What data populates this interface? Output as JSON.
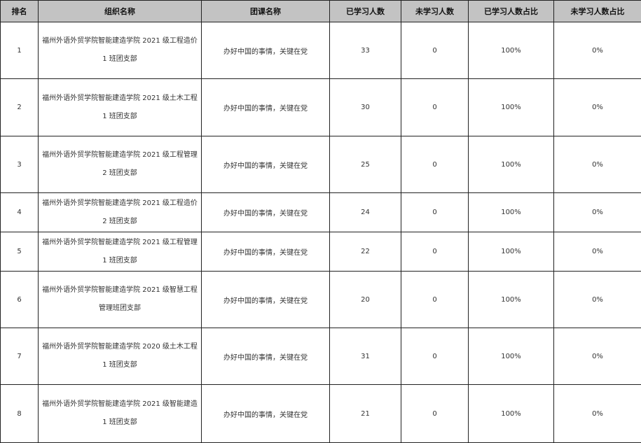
{
  "table": {
    "headers": [
      "排名",
      "组织名称",
      "团课名称",
      "已学习人数",
      "未学习人数",
      "已学习人数占比",
      "未学习人数占比"
    ],
    "rows": [
      {
        "rank": "1",
        "org": "福州外语外贸学院智能建造学院 2021 级工程造价 1 班团支部",
        "course": "办好中国的事情，关键在党",
        "learned": "33",
        "not_learned": "0",
        "learned_pct": "100%",
        "not_learned_pct": "0%"
      },
      {
        "rank": "2",
        "org": "福州外语外贸学院智能建造学院 2021 级土木工程 1 班团支部",
        "course": "办好中国的事情，关键在党",
        "learned": "30",
        "not_learned": "0",
        "learned_pct": "100%",
        "not_learned_pct": "0%"
      },
      {
        "rank": "3",
        "org": "福州外语外贸学院智能建造学院 2021 级工程管理 2 班团支部",
        "course": "办好中国的事情，关键在党",
        "learned": "25",
        "not_learned": "0",
        "learned_pct": "100%",
        "not_learned_pct": "0%"
      },
      {
        "rank": "4",
        "org": "福州外语外贸学院智能建造学院 2021 级工程造价 2 班团支部",
        "course": "办好中国的事情，关键在党",
        "learned": "24",
        "not_learned": "0",
        "learned_pct": "100%",
        "not_learned_pct": "0%"
      },
      {
        "rank": "5",
        "org": "福州外语外贸学院智能建造学院 2021 级工程管理 1 班团支部",
        "course": "办好中国的事情，关键在党",
        "learned": "22",
        "not_learned": "0",
        "learned_pct": "100%",
        "not_learned_pct": "0%"
      },
      {
        "rank": "6",
        "org": "福州外语外贸学院智能建造学院 2021 级智慧工程管理班团支部",
        "course": "办好中国的事情，关键在党",
        "learned": "20",
        "not_learned": "0",
        "learned_pct": "100%",
        "not_learned_pct": "0%"
      },
      {
        "rank": "7",
        "org": "福州外语外贸学院智能建造学院 2020 级土木工程 1 班团支部",
        "course": "办好中国的事情，关键在党",
        "learned": "31",
        "not_learned": "0",
        "learned_pct": "100%",
        "not_learned_pct": "0%"
      },
      {
        "rank": "8",
        "org": "福州外语外贸学院智能建造学院 2021 级智能建造 1 班团支部",
        "course": "办好中国的事情，关键在党",
        "learned": "21",
        "not_learned": "0",
        "learned_pct": "100%",
        "not_learned_pct": "0%"
      }
    ]
  }
}
